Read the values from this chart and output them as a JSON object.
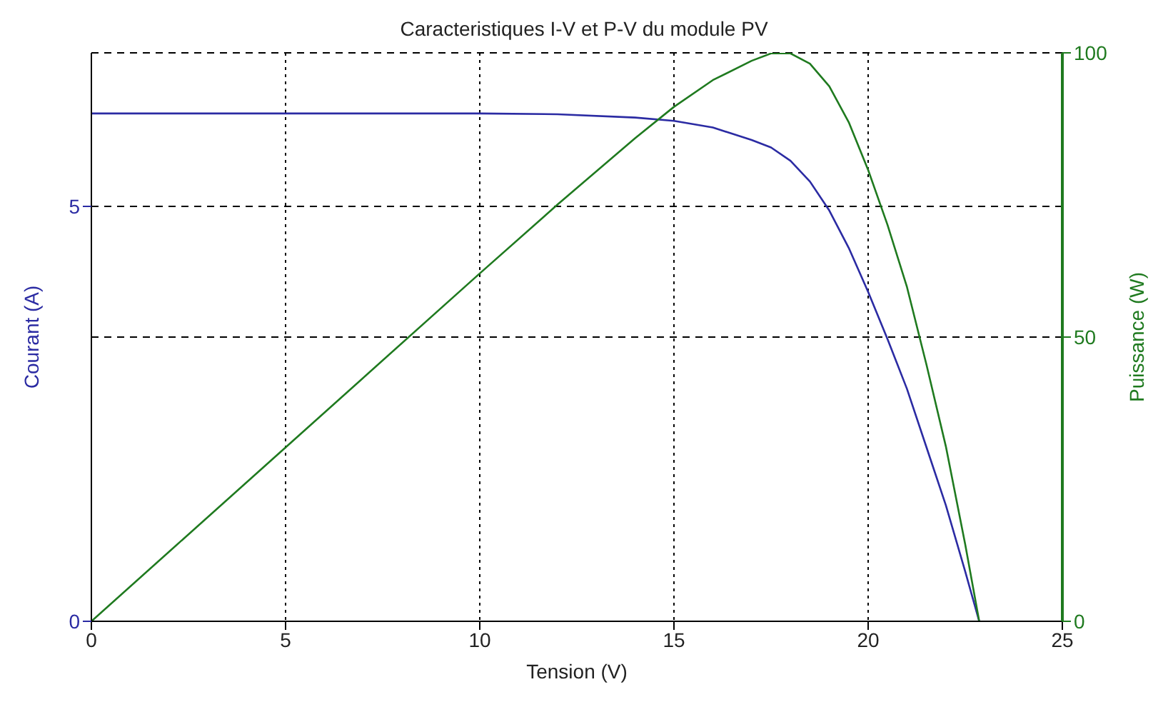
{
  "chart_data": {
    "type": "line",
    "title": "Caracteristiques I-V et P-V du module PV",
    "xlabel": "Tension (V)",
    "ylabel": "Courant (A)",
    "y2label": "Puissance (W)",
    "x": [
      0,
      5,
      10,
      12,
      14,
      15,
      16,
      17,
      17.5,
      18,
      18.5,
      19,
      19.5,
      20,
      20.5,
      21,
      21.5,
      22,
      22.5,
      22.86
    ],
    "series": [
      {
        "color": "#2b2ba3",
        "values": [
          6.12,
          6.12,
          6.12,
          6.11,
          6.07,
          6.03,
          5.95,
          5.8,
          5.71,
          5.55,
          5.3,
          4.95,
          4.5,
          3.97,
          3.4,
          2.8,
          2.1,
          1.4,
          0.6,
          0
        ]
      },
      {
        "color": "#1f7a1f",
        "axis": "y2",
        "values": [
          0,
          30.6,
          61.2,
          73.3,
          85,
          90.5,
          95.2,
          98.6,
          99.9,
          99.9,
          98.1,
          94.1,
          87.8,
          79.4,
          69.7,
          58.8,
          45.2,
          30.8,
          13.5,
          0
        ]
      }
    ],
    "xlim": [
      0,
      25
    ],
    "xticks": [
      0,
      5,
      10,
      15,
      20,
      25
    ],
    "ylim": [
      0,
      6.85
    ],
    "yticks": [
      0,
      5
    ],
    "y2lim": [
      0,
      100
    ],
    "y2ticks": [
      0,
      50,
      100
    ],
    "grid": true,
    "marker": "none",
    "line_style": "solid"
  }
}
